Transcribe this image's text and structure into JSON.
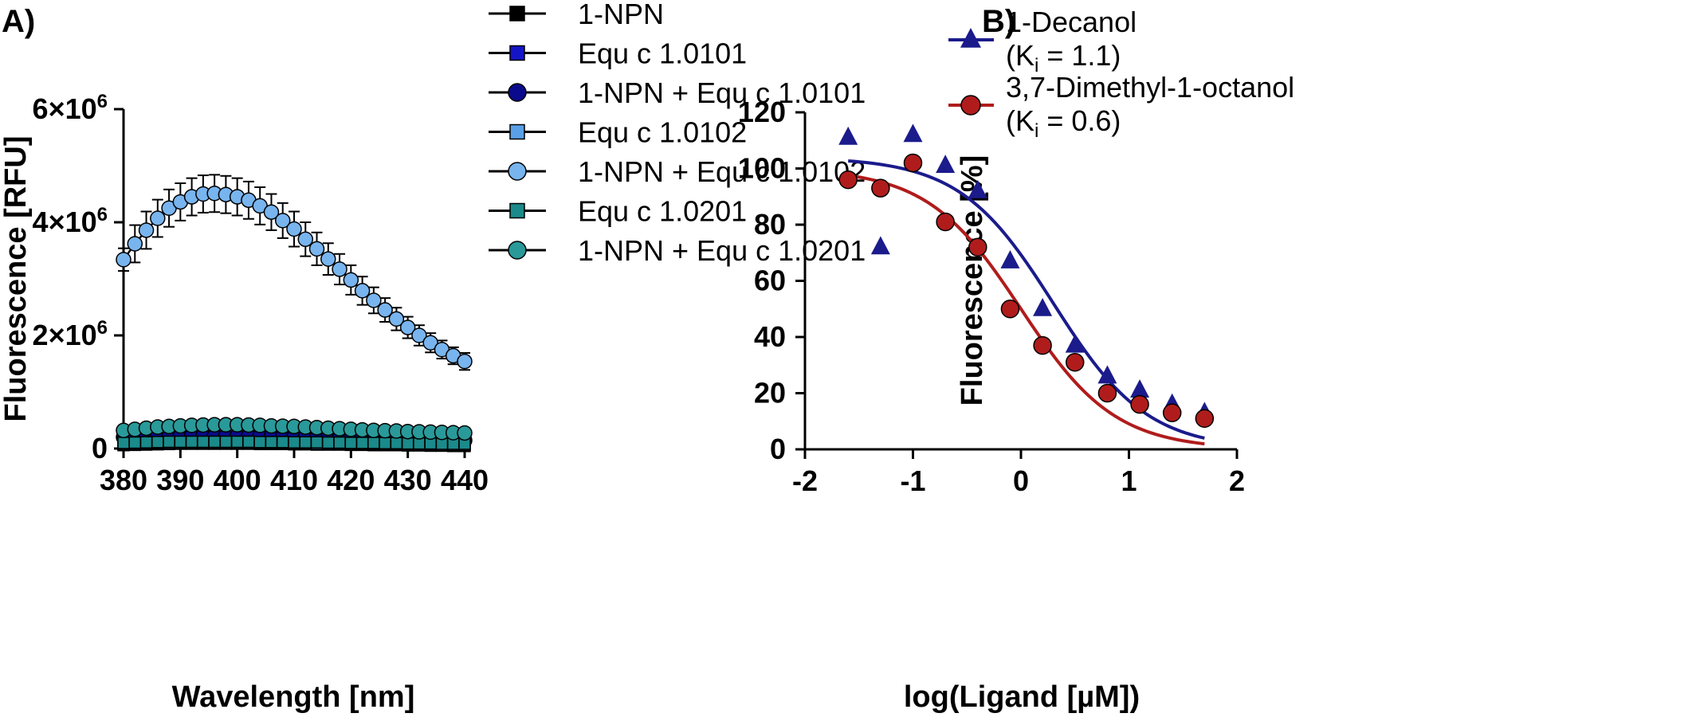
{
  "chart_data": [
    {
      "panel": "A)",
      "type": "line",
      "xlabel": "Wavelength [nm]",
      "ylabel": "Fluorescence [RFU]",
      "xlim": [
        380,
        440
      ],
      "ylim": [
        0,
        6000000
      ],
      "xticks": [
        380,
        390,
        400,
        410,
        420,
        430,
        440
      ],
      "xtick_labels": [
        "380",
        "390",
        "400",
        "410",
        "420",
        "430",
        "440"
      ],
      "yticks": [
        0,
        2000000,
        4000000,
        6000000
      ],
      "ytick_labels": [
        {
          "base": "0",
          "exp": ""
        },
        {
          "base": "2×10",
          "exp": "6"
        },
        {
          "base": "4×10",
          "exp": "6"
        },
        {
          "base": "6×10",
          "exp": "6"
        }
      ],
      "x": [
        380,
        382,
        384,
        386,
        388,
        390,
        392,
        394,
        396,
        398,
        400,
        402,
        404,
        406,
        408,
        410,
        412,
        414,
        416,
        418,
        420,
        422,
        424,
        426,
        428,
        430,
        432,
        434,
        436,
        438,
        440
      ],
      "series": [
        {
          "name": "1-NPN",
          "marker": "square",
          "color": "#000000",
          "values": [
            150000,
            150000,
            150000,
            150000,
            150000,
            150000,
            150000,
            150000,
            150000,
            150000,
            150000,
            150000,
            150000,
            150000,
            150000,
            150000,
            150000,
            150000,
            150000,
            150000,
            150000,
            150000,
            150000,
            150000,
            150000,
            150000,
            150000,
            150000,
            150000,
            150000,
            150000
          ]
        },
        {
          "name": "Equ c 1.0101",
          "marker": "square",
          "color": "#1515c8",
          "values": [
            60000,
            65000,
            70000,
            75000,
            80000,
            85000,
            85000,
            85000,
            85000,
            85000,
            85000,
            85000,
            80000,
            80000,
            80000,
            75000,
            75000,
            70000,
            70000,
            70000,
            65000,
            65000,
            60000,
            60000,
            60000,
            55000,
            55000,
            50000,
            50000,
            45000,
            45000
          ]
        },
        {
          "name": "1-NPN + Equ c 1.0101",
          "marker": "circle",
          "color": "#0a0a8c",
          "values": [
            200000,
            205000,
            210000,
            215000,
            220000,
            225000,
            225000,
            225000,
            225000,
            225000,
            225000,
            225000,
            220000,
            220000,
            215000,
            210000,
            205000,
            200000,
            195000,
            190000,
            185000,
            180000,
            175000,
            170000,
            165000,
            160000,
            155000,
            150000,
            150000,
            145000,
            145000
          ]
        },
        {
          "name": "Equ c 1.0102",
          "marker": "square",
          "color": "#5aa0e6",
          "values": [
            80000,
            85000,
            90000,
            95000,
            100000,
            100000,
            100000,
            100000,
            100000,
            100000,
            100000,
            100000,
            95000,
            95000,
            95000,
            90000,
            90000,
            85000,
            85000,
            85000,
            80000,
            80000,
            80000,
            75000,
            75000,
            70000,
            70000,
            70000,
            65000,
            65000,
            65000
          ]
        },
        {
          "name": "1-NPN + Equ c 1.0102",
          "marker": "circle",
          "color": "#78b4ee",
          "values": [
            3340000,
            3620000,
            3860000,
            4070000,
            4250000,
            4360000,
            4450000,
            4500000,
            4510000,
            4490000,
            4450000,
            4390000,
            4290000,
            4180000,
            4030000,
            3880000,
            3700000,
            3530000,
            3350000,
            3170000,
            2980000,
            2790000,
            2620000,
            2450000,
            2290000,
            2140000,
            2000000,
            1870000,
            1750000,
            1640000,
            1540000
          ],
          "errors": [
            200000,
            330000,
            330000,
            330000,
            330000,
            330000,
            330000,
            330000,
            330000,
            330000,
            330000,
            330000,
            330000,
            320000,
            310000,
            310000,
            300000,
            290000,
            280000,
            270000,
            260000,
            250000,
            230000,
            210000,
            200000,
            190000,
            180000,
            170000,
            160000,
            150000,
            150000
          ]
        },
        {
          "name": "Equ c 1.0201",
          "marker": "square",
          "color": "#1a8a8a",
          "values": [
            100000,
            105000,
            110000,
            115000,
            120000,
            120000,
            120000,
            120000,
            120000,
            120000,
            120000,
            120000,
            115000,
            115000,
            115000,
            110000,
            110000,
            110000,
            105000,
            105000,
            100000,
            100000,
            100000,
            95000,
            95000,
            90000,
            90000,
            90000,
            85000,
            85000,
            85000
          ]
        },
        {
          "name": "1-NPN + Equ c 1.0201",
          "marker": "circle",
          "color": "#2a9999",
          "values": [
            320000,
            340000,
            360000,
            380000,
            390000,
            400000,
            410000,
            415000,
            420000,
            420000,
            420000,
            415000,
            410000,
            400000,
            395000,
            390000,
            380000,
            370000,
            360000,
            350000,
            340000,
            330000,
            320000,
            315000,
            310000,
            300000,
            295000,
            290000,
            285000,
            280000,
            275000
          ]
        }
      ]
    },
    {
      "panel": "B)",
      "type": "scatter",
      "xlabel": "log(Ligand [µM])",
      "ylabel": "Fluorescence [%]",
      "xlim": [
        -2,
        2
      ],
      "ylim": [
        0,
        120
      ],
      "xticks": [
        -2,
        -1,
        0,
        1,
        2
      ],
      "xtick_labels": [
        "-2",
        "-1",
        "0",
        "1",
        "2"
      ],
      "yticks": [
        0,
        20,
        40,
        60,
        80,
        100,
        120
      ],
      "ytick_labels": [
        "0",
        "20",
        "40",
        "60",
        "80",
        "100",
        "120"
      ],
      "series": [
        {
          "name": "1-Decanol",
          "ki_prefix": "(K",
          "ki_sub": "i",
          "ki_suffix": " = 1.1)",
          "marker": "triangle",
          "color": "#1b1b8c",
          "x": [
            -1.6,
            -1.3,
            -1.0,
            -0.7,
            -0.4,
            -0.1,
            0.2,
            0.5,
            0.8,
            1.1,
            1.4,
            1.7
          ],
          "y": [
            111,
            72,
            112,
            101,
            92,
            67,
            50,
            37,
            26,
            21,
            16,
            13
          ],
          "fit": {
            "top": 104,
            "bottom": 0,
            "logec50": 0.3
          }
        },
        {
          "name": "3,7-Dimethyl-1-octanol",
          "ki_prefix": "(K",
          "ki_sub": "i",
          "ki_suffix": " = 0.6)",
          "marker": "circle",
          "color": "#b01c1c",
          "x": [
            -1.6,
            -1.3,
            -1.0,
            -0.7,
            -0.4,
            -0.1,
            0.2,
            0.5,
            0.8,
            1.1,
            1.4,
            1.7
          ],
          "y": [
            96,
            93,
            102,
            81,
            72,
            50,
            37,
            31,
            20,
            16,
            13,
            11
          ],
          "fit": {
            "top": 100,
            "bottom": 0,
            "logec50": 0.0
          }
        }
      ]
    }
  ]
}
